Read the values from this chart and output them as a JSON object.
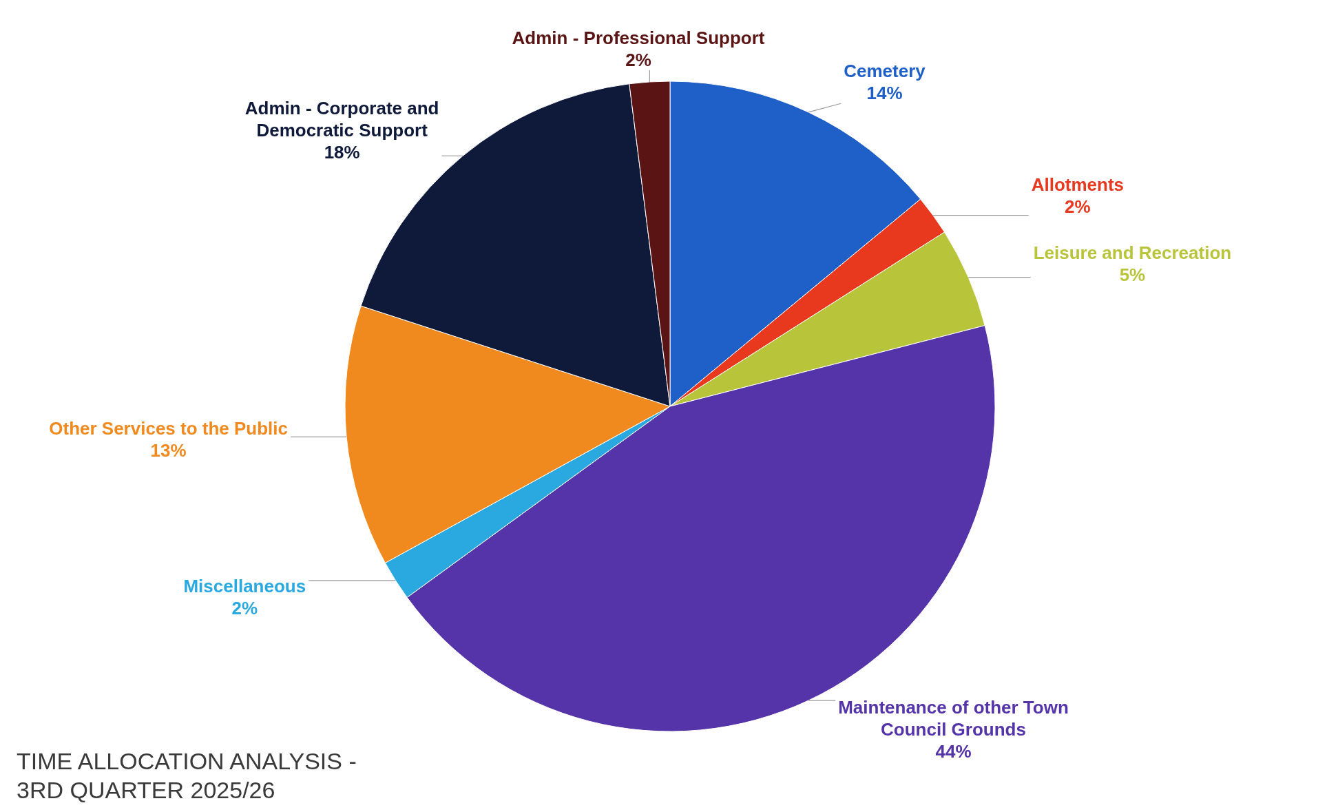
{
  "chart_data": {
    "type": "pie",
    "title": "TIME ALLOCATION ANALYSIS - 3RD QUARTER 2025/26",
    "categories": [
      "Cemetery",
      "Allotments",
      "Leisure and Recreation",
      "Maintenance of other Town Council Grounds",
      "Miscellaneous",
      "Other Services to the Public",
      "Admin - Corporate and Democratic Support",
      "Admin - Professional Support"
    ],
    "values": [
      14,
      2,
      5,
      44,
      2,
      13,
      18,
      2
    ],
    "value_labels": [
      "14%",
      "2%",
      "5%",
      "44%",
      "2%",
      "13%",
      "18%",
      "2%"
    ],
    "colors": [
      "#1f5fc8",
      "#e8391f",
      "#b8c43a",
      "#5533a8",
      "#2aa9e0",
      "#f08a1e",
      "#0f1a3a",
      "#5a1414"
    ],
    "legend": false
  }
}
